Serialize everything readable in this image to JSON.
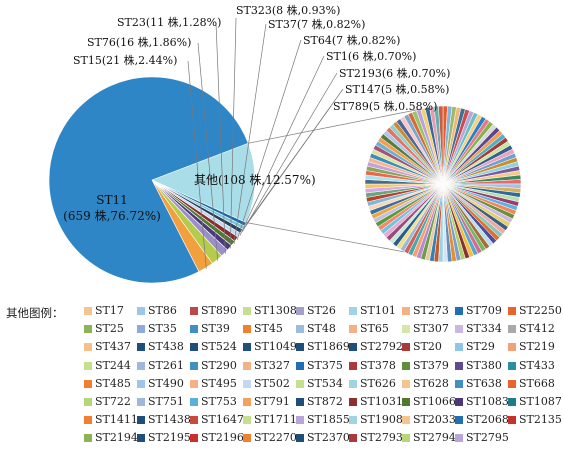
{
  "chart_data": {
    "type": "pie",
    "main_pie": {
      "slices": [
        {
          "label": "ST11",
          "count": 659,
          "percent": 76.72,
          "text_line1": "ST11",
          "text_line2": "(659 株,76.72%)",
          "color": "#2f86c6"
        },
        {
          "label": "其他",
          "count": 108,
          "percent": 12.57,
          "text": "其他(108 株,12.57%)",
          "color": "#a9dde8"
        },
        {
          "label": "ST789",
          "count": 5,
          "percent": 0.58,
          "text": "ST789(5 株,0.58%)",
          "color": "#1a6aa8"
        },
        {
          "label": "ST147",
          "count": 5,
          "percent": 0.58,
          "text": "ST147(5 株,0.58%)",
          "color": "#7fc6d6"
        },
        {
          "label": "ST2193",
          "count": 6,
          "percent": 0.7,
          "text": "ST2193(6 株,0.70%)",
          "color": "#27435c"
        },
        {
          "label": "ST1",
          "count": 6,
          "percent": 0.7,
          "text": "ST1(6 株,0.70%)",
          "color": "#c6d7ef"
        },
        {
          "label": "ST64",
          "count": 7,
          "percent": 0.82,
          "text": "ST64(7 株,0.82%)",
          "color": "#8a2c2c"
        },
        {
          "label": "ST37",
          "count": 7,
          "percent": 0.82,
          "text": "ST37(7 株,0.82%)",
          "color": "#4f7a2e"
        },
        {
          "label": "ST323",
          "count": 8,
          "percent": 0.93,
          "text": "ST323(8 株,0.93%)",
          "color": "#4b3a78"
        },
        {
          "label": "ST23",
          "count": 11,
          "percent": 1.28,
          "text": "ST23(11 株,1.28%)",
          "color": "#9b8ec9"
        },
        {
          "label": "ST76",
          "count": 16,
          "percent": 1.86,
          "text": "ST76(16 株,1.86%)",
          "color": "#b5cc4a"
        },
        {
          "label": "ST15",
          "count": 21,
          "percent": 2.44,
          "text": "ST15(21 株,2.44%)",
          "color": "#f2a03d"
        }
      ]
    },
    "other_pie": {
      "slice_colors": [
        "#e85a2a",
        "#7fb6e0",
        "#9fb96b",
        "#f0b77a",
        "#3f6f9a",
        "#c94f4f",
        "#b9a6d9",
        "#6dc0c0",
        "#f5d08a",
        "#2a7fbf",
        "#e07b91",
        "#89b34a",
        "#d9d9d9",
        "#5a4a8a",
        "#f29d58",
        "#4fb0c6",
        "#a43a3a",
        "#cfe3a1",
        "#355f86",
        "#e9a3c0",
        "#70a0d0",
        "#c7902e",
        "#8fd0e3",
        "#7a5c9e",
        "#f6c88e",
        "#3b8a5a",
        "#e56a6a",
        "#a7c0e8",
        "#d7b15a",
        "#2f6b9a",
        "#b9e0b0",
        "#9a3d6d",
        "#5fb3e3",
        "#f0885a",
        "#6f8f3a",
        "#c9b8e8",
        "#e3d26a",
        "#3d5f7f",
        "#f2a7a7",
        "#8bc7b7",
        "#e0702f",
        "#4c4c9a",
        "#bcdcf0",
        "#a86b3a",
        "#72b861",
        "#d36b9a",
        "#58a6c8",
        "#f0c040",
        "#8c2f2f",
        "#b0d070",
        "#7da0c8",
        "#e28f3c",
        "#5e8fb8",
        "#d4e4f4",
        "#9bd2e6",
        "#c45a2a",
        "#3a7fb0",
        "#e8c9a0",
        "#6c9c4c",
        "#b88ad0",
        "#f4a070",
        "#4aa8a8",
        "#d0605a",
        "#a0b8d8",
        "#f0e08a",
        "#2c5c8c",
        "#c8e8d8",
        "#9c4c7c",
        "#e0b0d0",
        "#7cc0e0",
        "#f08a6a",
        "#5a9a3a",
        "#c0c0e0",
        "#e8a848",
        "#3e6e9e",
        "#f6d8b8",
        "#86b6d6",
        "#b4442c",
        "#68a878",
        "#d8a8e8",
        "#f2c86a",
        "#466c8c",
        "#aee0ee",
        "#e86a4a",
        "#8aa85a",
        "#c8a0d8",
        "#f4b890",
        "#3c8cbc",
        "#e0e0a0",
        "#a45474",
        "#70b0d0",
        "#f0a050",
        "#5c7c3c",
        "#b0c8e8",
        "#e2726a",
        "#94d0c4",
        "#cc8a3a",
        "#486898",
        "#f8c8c8",
        "#7aa6c8",
        "#d46c3c",
        "#9ac46a",
        "#bca0dc",
        "#f0d070",
        "#346a9a",
        "#e89ab0",
        "#62aeb0",
        "#c86040"
      ]
    },
    "legend_title": "其他图例：",
    "legend": [
      {
        "label": "ST17",
        "color": "#f6c58f"
      },
      {
        "label": "ST86",
        "color": "#9fc5e8"
      },
      {
        "label": "ST890",
        "color": "#b94a48"
      },
      {
        "label": "ST1308",
        "color": "#c6df8f"
      },
      {
        "label": "ST26",
        "color": "#a3a0c9"
      },
      {
        "label": "ST101",
        "color": "#a0d3e3"
      },
      {
        "label": "ST273",
        "color": "#f4b183"
      },
      {
        "label": "ST709",
        "color": "#1f6fb2"
      },
      {
        "label": "ST2250",
        "color": "#e8642c"
      },
      {
        "label": "ST25",
        "color": "#8db356"
      },
      {
        "label": "ST35",
        "color": "#8faadc"
      },
      {
        "label": "ST39",
        "color": "#3f8fc5"
      },
      {
        "label": "ST45",
        "color": "#f08030"
      },
      {
        "label": "ST48",
        "color": "#9bbbe0"
      },
      {
        "label": "ST65",
        "color": "#f4b183"
      },
      {
        "label": "ST307",
        "color": "#d6e6a8"
      },
      {
        "label": "ST334",
        "color": "#c9b8e0"
      },
      {
        "label": "ST412",
        "color": "#a9a9a9"
      },
      {
        "label": "ST437",
        "color": "#f6c08a"
      },
      {
        "label": "ST438",
        "color": "#1f4e79"
      },
      {
        "label": "ST524",
        "color": "#1f4e79"
      },
      {
        "label": "ST1049",
        "color": "#1f4e79"
      },
      {
        "label": "ST1869",
        "color": "#1f4e79"
      },
      {
        "label": "ST2792",
        "color": "#1f4e79"
      },
      {
        "label": "ST20",
        "color": "#a83a3a"
      },
      {
        "label": "ST29",
        "color": "#8fc6e6"
      },
      {
        "label": "ST219",
        "color": "#f0a07a"
      },
      {
        "label": "ST244",
        "color": "#c6df8f"
      },
      {
        "label": "ST261",
        "color": "#9fb6dd"
      },
      {
        "label": "ST290",
        "color": "#3f8fc5"
      },
      {
        "label": "ST327",
        "color": "#f4b183"
      },
      {
        "label": "ST375",
        "color": "#1f6fb2"
      },
      {
        "label": "ST378",
        "color": "#a83a3a"
      },
      {
        "label": "ST379",
        "color": "#5f8f3a"
      },
      {
        "label": "ST380",
        "color": "#5e4b8b"
      },
      {
        "label": "ST433",
        "color": "#2a8fa0"
      },
      {
        "label": "ST485",
        "color": "#f08030"
      },
      {
        "label": "ST490",
        "color": "#9fc5e8"
      },
      {
        "label": "ST495",
        "color": "#f4b183"
      },
      {
        "label": "ST502",
        "color": "#c6d7ef"
      },
      {
        "label": "ST534",
        "color": "#c6df8f"
      },
      {
        "label": "ST626",
        "color": "#a0d3e3"
      },
      {
        "label": "ST628",
        "color": "#f6c58f"
      },
      {
        "label": "ST638",
        "color": "#3f8fc5"
      },
      {
        "label": "ST668",
        "color": "#e8642c"
      },
      {
        "label": "ST722",
        "color": "#b5d67a"
      },
      {
        "label": "ST751",
        "color": "#9fb6dd"
      },
      {
        "label": "ST753",
        "color": "#5aaee0"
      },
      {
        "label": "ST791",
        "color": "#f4a060"
      },
      {
        "label": "ST872",
        "color": "#1f4e79"
      },
      {
        "label": "ST1031",
        "color": "#8c2f2f"
      },
      {
        "label": "ST1066",
        "color": "#4f7a2e"
      },
      {
        "label": "ST1083",
        "color": "#4b3a78"
      },
      {
        "label": "ST1087",
        "color": "#1f7a8c"
      },
      {
        "label": "ST1411",
        "color": "#f08030"
      },
      {
        "label": "ST1438",
        "color": "#1f4e79"
      },
      {
        "label": "ST1647",
        "color": "#c84a3a"
      },
      {
        "label": "ST1711",
        "color": "#c6df8f"
      },
      {
        "label": "ST1855",
        "color": "#b9a6d9"
      },
      {
        "label": "ST1908",
        "color": "#a0d3e3"
      },
      {
        "label": "ST2033",
        "color": "#f6c58f"
      },
      {
        "label": "ST2068",
        "color": "#1f6fb2"
      },
      {
        "label": "ST2135",
        "color": "#c8302a"
      },
      {
        "label": "ST2194",
        "color": "#8db356"
      },
      {
        "label": "ST2195",
        "color": "#1f4e79"
      },
      {
        "label": "ST2196",
        "color": "#c8302a"
      },
      {
        "label": "ST2270",
        "color": "#f08030"
      },
      {
        "label": "ST2370",
        "color": "#1f4e79"
      },
      {
        "label": "ST2793",
        "color": "#a83a3a"
      },
      {
        "label": "ST2794",
        "color": "#b5d67a"
      },
      {
        "label": "ST2795",
        "color": "#b9a6d9"
      }
    ]
  }
}
